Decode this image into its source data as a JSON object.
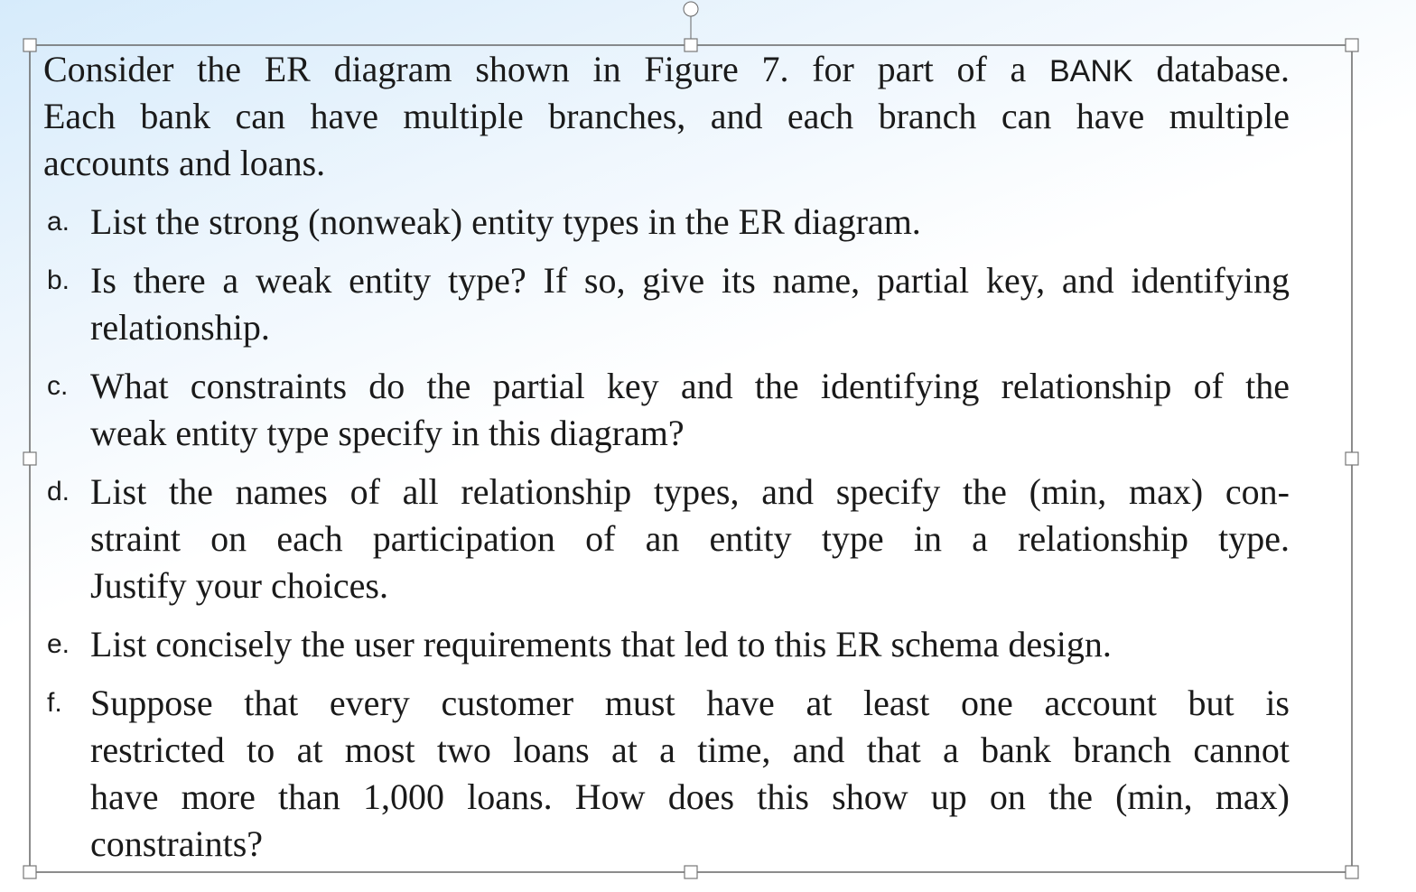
{
  "intro": {
    "lines": [
      [
        "Consider the ER diagram shown in Figure 7.",
        "for part of a",
        "BANK",
        "database."
      ],
      [
        "Each bank can have multiple branches, and each branch can have multiple"
      ],
      [
        "accounts and loans."
      ]
    ]
  },
  "items": [
    {
      "label": "a.",
      "lines": [
        "List the strong (nonweak) entity types in the ER diagram."
      ]
    },
    {
      "label": "b.",
      "lines": [
        "Is there a weak entity type? If so, give its name, partial key, and identifying",
        "relationship."
      ]
    },
    {
      "label": "c.",
      "lines": [
        "What constraints do the partial key and the identifying relationship of the",
        "weak entity type specify in this diagram?"
      ]
    },
    {
      "label": "d.",
      "lines": [
        "List the names of all relationship types, and specify the (min, max) con-",
        "straint on each participation of an entity type in a relationship type.",
        "Justify your choices."
      ]
    },
    {
      "label": "e.",
      "lines": [
        "List concisely the user requirements that led to this ER schema design."
      ]
    },
    {
      "label": "f.",
      "lines": [
        "Suppose that every customer must have at least one account but is",
        "restricted to at most two loans at a time, and that a bank branch cannot",
        "have more than 1,000 loans. How does this show up on the (min, max)",
        "constraints?"
      ]
    }
  ]
}
